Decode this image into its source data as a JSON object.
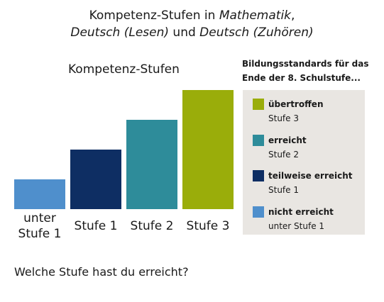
{
  "title": {
    "line1_plain": "Kompetenz-Stufen in ",
    "line1_italic": "Mathematik",
    "line1_end": ",",
    "line2_italic1": "Deutsch (Lesen)",
    "line2_plain": " und ",
    "line2_italic2": "Deutsch (Zuhören)"
  },
  "chart_data": {
    "type": "bar",
    "title": "Kompetenz-Stufen",
    "categories": [
      [
        "unter",
        "Stufe 1"
      ],
      [
        "Stufe 1"
      ],
      [
        "Stufe 2"
      ],
      [
        "Stufe 3"
      ]
    ],
    "values": [
      1,
      2,
      3,
      4
    ],
    "ylim": [
      0,
      4
    ],
    "grid": false,
    "legend_placement": "right",
    "colors": [
      "#4f8fcc",
      "#0e2e63",
      "#2e8c9a",
      "#9aad0a"
    ]
  },
  "legend": {
    "heading": "Bildungsstandards für das Ende der 8. Schulstufe...",
    "items": [
      {
        "label": "übertroffen",
        "sub": "Stufe 3",
        "color": "#9aad0a"
      },
      {
        "label": "erreicht",
        "sub": "Stufe 2",
        "color": "#2e8c9a"
      },
      {
        "label": "teilweise erreicht",
        "sub": "Stufe 1",
        "color": "#0e2e63"
      },
      {
        "label": "nicht erreicht",
        "sub": "unter Stufe 1",
        "color": "#4f8fcc"
      }
    ]
  },
  "question": "Welche Stufe hast du erreicht?"
}
